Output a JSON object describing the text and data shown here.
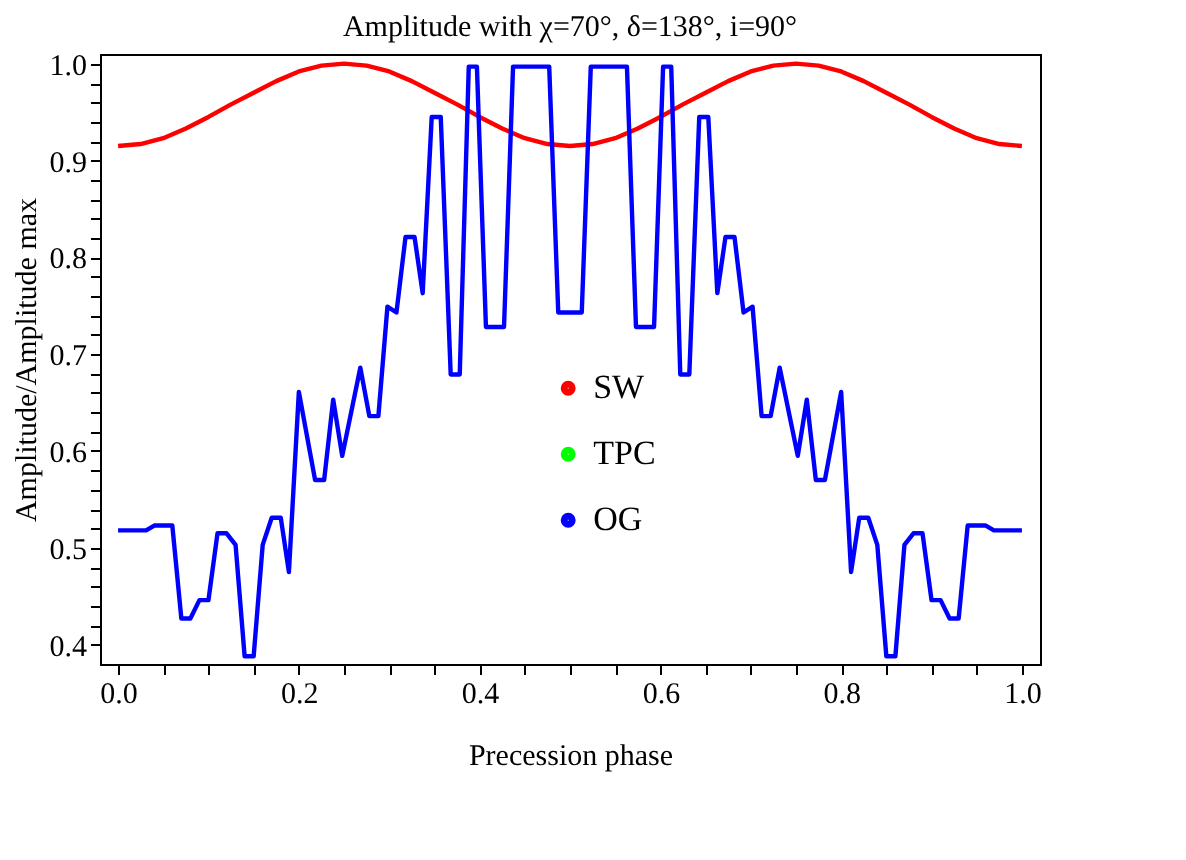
{
  "chart_data": {
    "type": "line",
    "title": "Amplitude with χ=70°, δ=138°, i=90°",
    "xlabel": "Precession phase",
    "ylabel": "Amplitude/Amplitude max",
    "xlim": [
      -0.02,
      1.02
    ],
    "ylim": [
      0.38,
      1.01
    ],
    "xticks": [
      {
        "value": 0.0,
        "label": "0.0"
      },
      {
        "value": 0.05,
        "label": null
      },
      {
        "value": 0.1,
        "label": null
      },
      {
        "value": 0.15,
        "label": null
      },
      {
        "value": 0.2,
        "label": "0.2"
      },
      {
        "value": 0.25,
        "label": null
      },
      {
        "value": 0.3,
        "label": null
      },
      {
        "value": 0.35,
        "label": null
      },
      {
        "value": 0.4,
        "label": "0.4"
      },
      {
        "value": 0.45,
        "label": null
      },
      {
        "value": 0.5,
        "label": null
      },
      {
        "value": 0.55,
        "label": null
      },
      {
        "value": 0.6,
        "label": "0.6"
      },
      {
        "value": 0.65,
        "label": null
      },
      {
        "value": 0.7,
        "label": null
      },
      {
        "value": 0.75,
        "label": null
      },
      {
        "value": 0.8,
        "label": "0.8"
      },
      {
        "value": 0.85,
        "label": null
      },
      {
        "value": 0.9,
        "label": null
      },
      {
        "value": 0.95,
        "label": null
      },
      {
        "value": 1.0,
        "label": "1.0"
      }
    ],
    "yticks": [
      {
        "value": 0.4,
        "label": "0.4"
      },
      {
        "value": 0.42,
        "label": null
      },
      {
        "value": 0.44,
        "label": null
      },
      {
        "value": 0.46,
        "label": null
      },
      {
        "value": 0.48,
        "label": null
      },
      {
        "value": 0.5,
        "label": "0.5"
      },
      {
        "value": 0.52,
        "label": null
      },
      {
        "value": 0.54,
        "label": null
      },
      {
        "value": 0.56,
        "label": null
      },
      {
        "value": 0.58,
        "label": null
      },
      {
        "value": 0.6,
        "label": "0.6"
      },
      {
        "value": 0.62,
        "label": null
      },
      {
        "value": 0.64,
        "label": null
      },
      {
        "value": 0.66,
        "label": null
      },
      {
        "value": 0.68,
        "label": null
      },
      {
        "value": 0.7,
        "label": "0.7"
      },
      {
        "value": 0.72,
        "label": null
      },
      {
        "value": 0.74,
        "label": null
      },
      {
        "value": 0.76,
        "label": null
      },
      {
        "value": 0.78,
        "label": null
      },
      {
        "value": 0.8,
        "label": "0.8"
      },
      {
        "value": 0.82,
        "label": null
      },
      {
        "value": 0.84,
        "label": null
      },
      {
        "value": 0.86,
        "label": null
      },
      {
        "value": 0.88,
        "label": null
      },
      {
        "value": 0.9,
        "label": "0.9"
      },
      {
        "value": 0.92,
        "label": null
      },
      {
        "value": 0.94,
        "label": null
      },
      {
        "value": 0.96,
        "label": null
      },
      {
        "value": 0.98,
        "label": null
      },
      {
        "value": 1.0,
        "label": "1.0"
      }
    ],
    "grid": false,
    "legend": "center",
    "marker": "none",
    "line_style": "solid",
    "series": [
      {
        "name": "SW",
        "color": "#ff0000",
        "x": [
          0,
          0.025,
          0.05,
          0.075,
          0.1,
          0.125,
          0.15,
          0.175,
          0.2,
          0.225,
          0.25,
          0.275,
          0.3,
          0.325,
          0.35,
          0.375,
          0.4,
          0.425,
          0.45,
          0.475,
          0.5,
          0.525,
          0.55,
          0.575,
          0.6,
          0.625,
          0.65,
          0.675,
          0.7,
          0.725,
          0.75,
          0.775,
          0.8,
          0.825,
          0.85,
          0.875,
          0.9,
          0.925,
          0.95,
          0.975,
          1.0
        ],
        "values": [
          0.915,
          0.917,
          0.923,
          0.933,
          0.945,
          0.958,
          0.97,
          0.982,
          0.992,
          0.998,
          1.0,
          0.998,
          0.992,
          0.982,
          0.97,
          0.958,
          0.945,
          0.933,
          0.923,
          0.917,
          0.915,
          0.917,
          0.923,
          0.933,
          0.945,
          0.958,
          0.97,
          0.982,
          0.992,
          0.998,
          1.0,
          0.998,
          0.992,
          0.982,
          0.97,
          0.958,
          0.945,
          0.933,
          0.923,
          0.917,
          0.915
        ]
      },
      {
        "name": "TPC",
        "color": "#00ff00"
      },
      {
        "name": "OG",
        "color": "#0000ff",
        "x": [
          0,
          0.031,
          0.04,
          0.06,
          0.07,
          0.08,
          0.09,
          0.1,
          0.11,
          0.12,
          0.13,
          0.14,
          0.15,
          0.16,
          0.17,
          0.18,
          0.189,
          0.2,
          0.218,
          0.228,
          0.238,
          0.248,
          0.268,
          0.278,
          0.288,
          0.298,
          0.308,
          0.318,
          0.328,
          0.337,
          0.347,
          0.357,
          0.368,
          0.378,
          0.388,
          0.397,
          0.407,
          0.427,
          0.437,
          0.477,
          0.487,
          0.513,
          0.523,
          0.563,
          0.573,
          0.593,
          0.603,
          0.612,
          0.622,
          0.632,
          0.643,
          0.653,
          0.663,
          0.672,
          0.682,
          0.692,
          0.702,
          0.712,
          0.722,
          0.732,
          0.752,
          0.762,
          0.772,
          0.782,
          0.8,
          0.811,
          0.82,
          0.83,
          0.84,
          0.85,
          0.86,
          0.87,
          0.88,
          0.89,
          0.9,
          0.91,
          0.92,
          0.93,
          0.94,
          0.96,
          0.969,
          1.0
        ],
        "values": [
          0.518,
          0.518,
          0.523,
          0.523,
          0.427,
          0.427,
          0.446,
          0.446,
          0.515,
          0.515,
          0.503,
          0.388,
          0.388,
          0.503,
          0.531,
          0.531,
          0.475,
          0.661,
          0.57,
          0.57,
          0.653,
          0.595,
          0.686,
          0.636,
          0.636,
          0.749,
          0.743,
          0.821,
          0.821,
          0.763,
          0.945,
          0.945,
          0.679,
          0.679,
          0.997,
          0.997,
          0.728,
          0.728,
          0.997,
          0.997,
          0.743,
          0.743,
          0.997,
          0.997,
          0.728,
          0.728,
          0.997,
          0.997,
          0.679,
          0.679,
          0.945,
          0.945,
          0.763,
          0.821,
          0.821,
          0.743,
          0.749,
          0.636,
          0.636,
          0.686,
          0.595,
          0.653,
          0.57,
          0.57,
          0.661,
          0.475,
          0.531,
          0.531,
          0.503,
          0.388,
          0.388,
          0.503,
          0.515,
          0.515,
          0.446,
          0.446,
          0.427,
          0.427,
          0.523,
          0.523,
          0.518,
          0.518
        ]
      }
    ]
  }
}
